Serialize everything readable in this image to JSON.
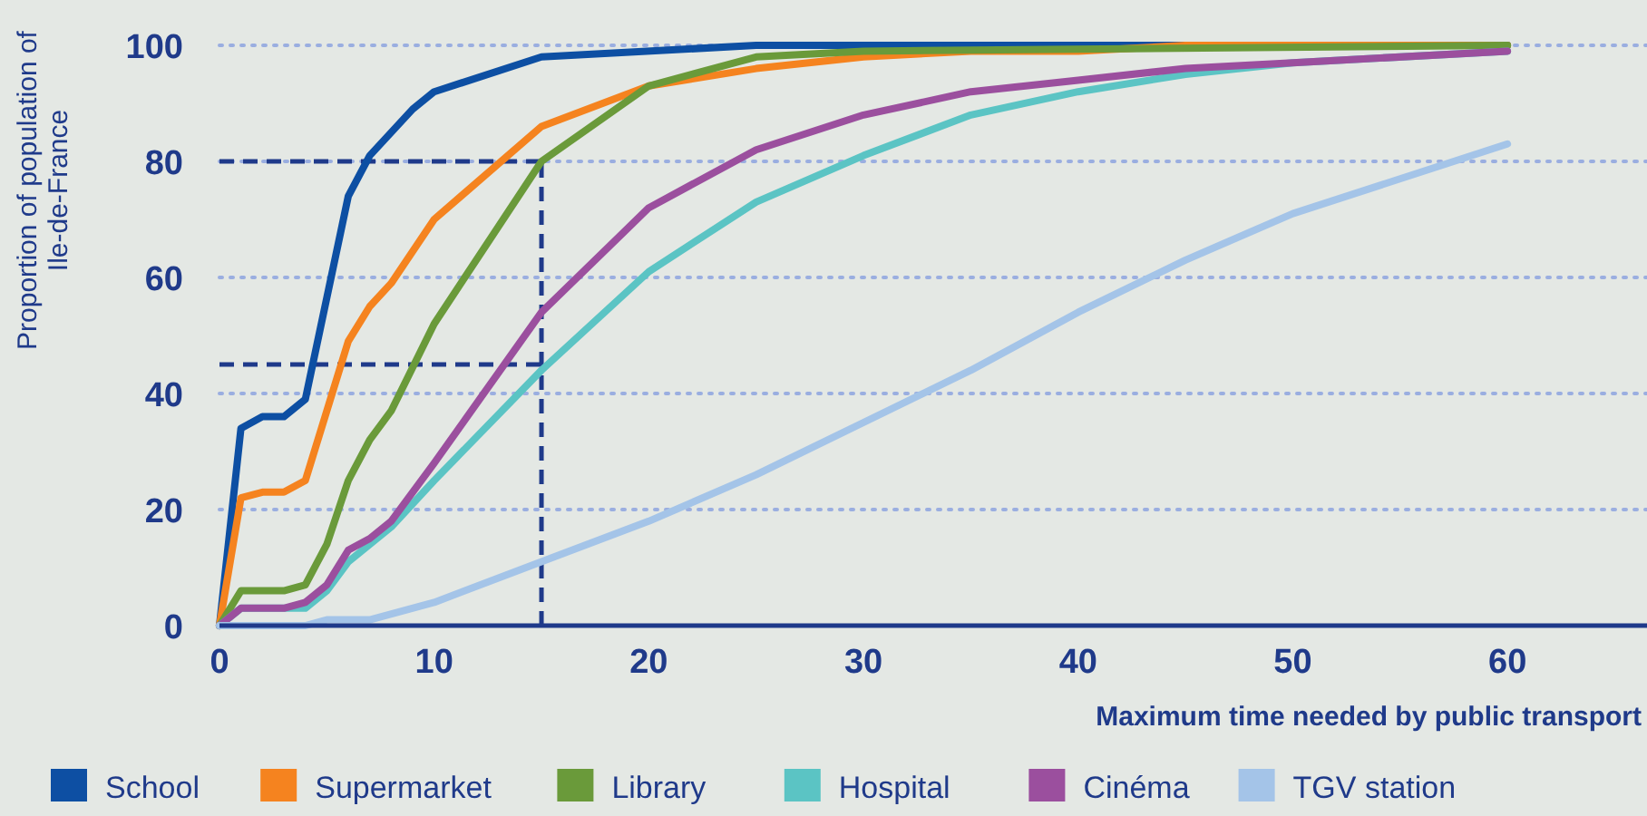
{
  "chart_data": {
    "type": "line",
    "xlabel": "Maximum time needed by public transport",
    "ylabel": "Proportion of population of Ile-de-France",
    "xlim": [
      0,
      66.5
    ],
    "xticks": [
      0,
      10,
      20,
      30,
      40,
      50,
      60
    ],
    "ylim": [
      0,
      100
    ],
    "yticks": [
      0,
      20,
      40,
      60,
      80,
      100
    ],
    "grid": "y",
    "legend": "bottom",
    "line_style": "solid",
    "marker": "none",
    "series": [
      {
        "name": "School",
        "color": "#0d4fa3",
        "x": [
          0,
          1,
          2,
          3,
          4,
          6,
          7,
          9,
          10,
          15,
          25,
          60
        ],
        "values": [
          0,
          34,
          36,
          36,
          39,
          74,
          81,
          89,
          92,
          98,
          100,
          100
        ]
      },
      {
        "name": "Supermarket",
        "color": "#f5831f",
        "x": [
          0,
          1,
          2,
          3,
          4,
          6,
          7,
          8,
          10,
          15,
          20,
          25,
          30,
          35,
          40,
          45,
          60
        ],
        "values": [
          0,
          22,
          23,
          23,
          25,
          49,
          55,
          59,
          70,
          86,
          93,
          96,
          98,
          99,
          99,
          100,
          100
        ]
      },
      {
        "name": "Library",
        "color": "#6a9a3a",
        "x": [
          0,
          1,
          2,
          3,
          4,
          5,
          6,
          7,
          8,
          10,
          15,
          20,
          25,
          30,
          60
        ],
        "values": [
          0,
          6,
          6,
          6,
          7,
          14,
          25,
          32,
          37,
          52,
          80,
          93,
          98,
          99,
          100
        ]
      },
      {
        "name": "Hospital",
        "color": "#5bc4c4",
        "x": [
          0,
          1,
          2,
          3,
          4,
          5,
          6,
          7,
          8,
          10,
          15,
          20,
          25,
          30,
          35,
          40,
          45,
          50,
          60
        ],
        "values": [
          0,
          3,
          3,
          3,
          3,
          6,
          11,
          14,
          17,
          25,
          44,
          61,
          73,
          81,
          88,
          92,
          95,
          97,
          99
        ]
      },
      {
        "name": "Cinéma",
        "color": "#9b4f9e",
        "x": [
          0,
          1,
          2,
          3,
          4,
          5,
          6,
          7,
          8,
          10,
          15,
          20,
          25,
          30,
          35,
          40,
          45,
          50,
          60
        ],
        "values": [
          0,
          3,
          3,
          3,
          4,
          7,
          13,
          15,
          18,
          28,
          54,
          72,
          82,
          88,
          92,
          94,
          96,
          97,
          99
        ]
      },
      {
        "name": "TGV station",
        "color": "#a4c4e8",
        "x": [
          0,
          4,
          5,
          7,
          10,
          15,
          20,
          25,
          30,
          35,
          40,
          45,
          50,
          60
        ],
        "values": [
          0,
          0,
          1,
          1,
          4,
          11,
          18,
          26,
          35,
          44,
          54,
          63,
          71,
          83
        ]
      }
    ],
    "ref_lines": [
      {
        "axis": "x",
        "value": 15,
        "color": "#1f3a8a",
        "line_style": "dashed"
      },
      {
        "axis": "y",
        "value": 80,
        "color": "#1f3a8a",
        "line_style": "dashed"
      },
      {
        "axis": "y",
        "value": 45,
        "color": "#1f3a8a",
        "line_style": "dashed"
      }
    ]
  }
}
